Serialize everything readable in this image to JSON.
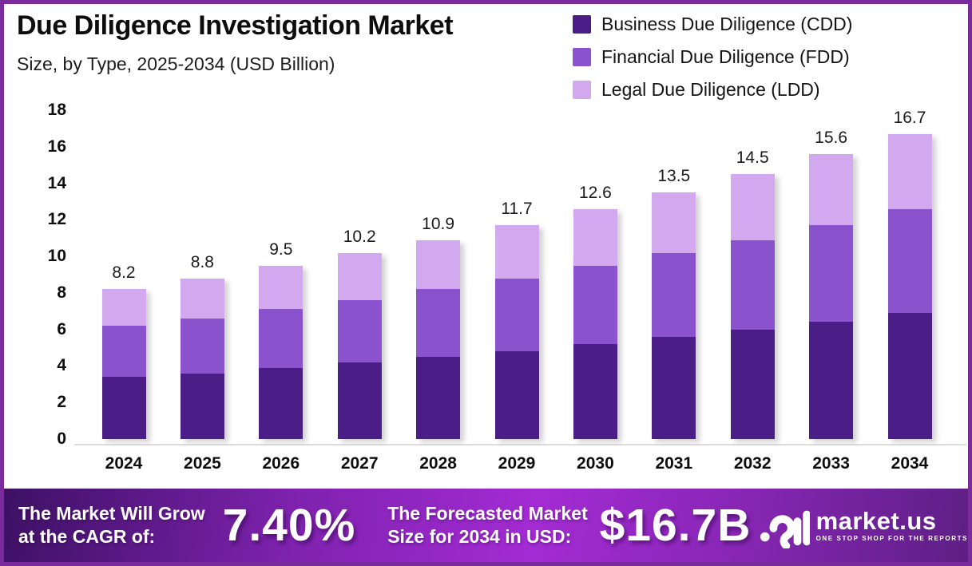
{
  "header": {
    "title": "Due Diligence Investigation Market",
    "subtitle": "Size, by Type, 2025-2034 (USD Billion)"
  },
  "chart_data": {
    "type": "bar",
    "stacked": true,
    "title": "Due Diligence Investigation Market Size, by Type, 2025-2034 (USD Billion)",
    "categories": [
      "2024",
      "2025",
      "2026",
      "2027",
      "2028",
      "2029",
      "2030",
      "2031",
      "2032",
      "2033",
      "2034"
    ],
    "series": [
      {
        "name": "Business Due Diligence (CDD)",
        "color": "#4A1E86",
        "values": [
          3.4,
          3.6,
          3.9,
          4.2,
          4.5,
          4.8,
          5.2,
          5.6,
          6.0,
          6.4,
          6.9
        ]
      },
      {
        "name": "Financial Due Diligence (FDD)",
        "color": "#8B52CE",
        "values": [
          2.8,
          3.0,
          3.2,
          3.4,
          3.7,
          4.0,
          4.3,
          4.6,
          4.9,
          5.3,
          5.7
        ]
      },
      {
        "name": "Legal Due Diligence (LDD)",
        "color": "#D2A9EE",
        "values": [
          2.0,
          2.2,
          2.4,
          2.6,
          2.7,
          2.9,
          3.1,
          3.3,
          3.6,
          3.9,
          4.1
        ]
      }
    ],
    "totals": [
      8.2,
      8.8,
      9.5,
      10.2,
      10.9,
      11.7,
      12.6,
      13.5,
      14.5,
      15.6,
      16.7
    ],
    "xlabel": "",
    "ylabel": "",
    "ylim": [
      0,
      18
    ],
    "ytick_step": 2,
    "grid": false,
    "legend_position": "top-right"
  },
  "banner": {
    "cagr_label_line1": "The Market Will Grow",
    "cagr_label_line2": "at the CAGR of:",
    "cagr_value": "7.40%",
    "forecast_label_line1": "The Forecasted Market",
    "forecast_label_line2": "Size for 2034 in USD:",
    "forecast_value": "$16.7B",
    "brand_name": "market.us",
    "brand_tagline": "ONE STOP SHOP FOR THE REPORTS"
  },
  "colors": {
    "frame_border": "#7A2B9B",
    "axis_line": "#DCDCDC",
    "banner_gradient_start": "#3D1164",
    "banner_gradient_mid": "#A32BD3",
    "banner_gradient_end": "#5E1F85"
  }
}
